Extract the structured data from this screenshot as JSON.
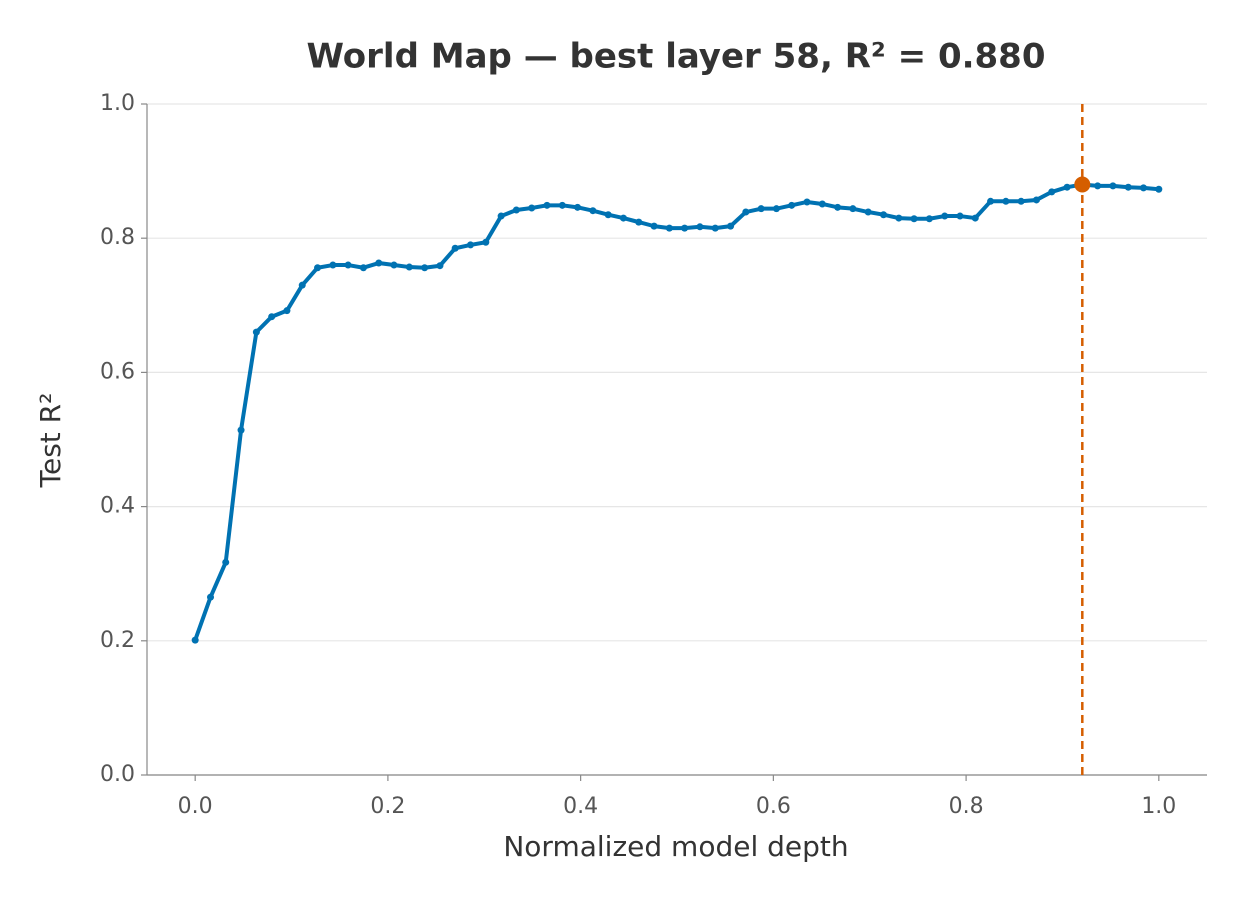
{
  "chart_data": {
    "type": "line",
    "title": "World Map — best layer 58, R² = 0.880",
    "x_label": "Normalized model depth",
    "y_label": "Test R²",
    "x": [
      0,
      0.0159,
      0.0317,
      0.0476,
      0.0635,
      0.0794,
      0.0952,
      0.1111,
      0.127,
      0.1429,
      0.1587,
      0.1746,
      0.1905,
      0.2063,
      0.2222,
      0.2381,
      0.254,
      0.2698,
      0.2857,
      0.3016,
      0.3175,
      0.3333,
      0.3492,
      0.3651,
      0.381,
      0.3968,
      0.4127,
      0.4286,
      0.4444,
      0.4603,
      0.4762,
      0.4921,
      0.5079,
      0.5238,
      0.5397,
      0.5556,
      0.5714,
      0.5873,
      0.6032,
      0.619,
      0.6349,
      0.6508,
      0.6667,
      0.6825,
      0.6984,
      0.7143,
      0.7302,
      0.746,
      0.7619,
      0.7778,
      0.7937,
      0.8095,
      0.8254,
      0.8413,
      0.8571,
      0.873,
      0.8889,
      0.9048,
      0.9206,
      0.9365,
      0.9524,
      0.9683,
      0.9841,
      1
    ],
    "series": [
      {
        "color": "#0072b2",
        "values": [
          0.201,
          0.265,
          0.317,
          0.514,
          0.66,
          0.683,
          0.692,
          0.73,
          0.756,
          0.76,
          0.76,
          0.756,
          0.763,
          0.76,
          0.757,
          0.756,
          0.759,
          0.785,
          0.79,
          0.794,
          0.833,
          0.842,
          0.845,
          0.849,
          0.849,
          0.846,
          0.841,
          0.835,
          0.83,
          0.824,
          0.818,
          0.815,
          0.815,
          0.817,
          0.815,
          0.818,
          0.839,
          0.844,
          0.844,
          0.849,
          0.854,
          0.851,
          0.846,
          0.844,
          0.839,
          0.835,
          0.83,
          0.829,
          0.829,
          0.833,
          0.833,
          0.83,
          0.855,
          0.855,
          0.855,
          0.857,
          0.869,
          0.876,
          0.88,
          0.878,
          0.878,
          0.876,
          0.875,
          0.873
        ]
      }
    ],
    "highlight_index": 58,
    "highlight_color": "#d55e00",
    "xlim": [
      -0.05,
      1.05
    ],
    "xticks": [
      {
        "value": 0,
        "label": "0.0"
      },
      0.2,
      0.4,
      0.6,
      0.8,
      {
        "value": 1,
        "label": "1.0"
      }
    ],
    "ylim": [
      0,
      1
    ],
    "yticks": [
      {
        "value": 0,
        "label": "0.0"
      },
      0.2,
      0.4,
      0.6,
      0.8,
      {
        "value": 1,
        "label": "1.0"
      }
    ],
    "grid": true
  }
}
